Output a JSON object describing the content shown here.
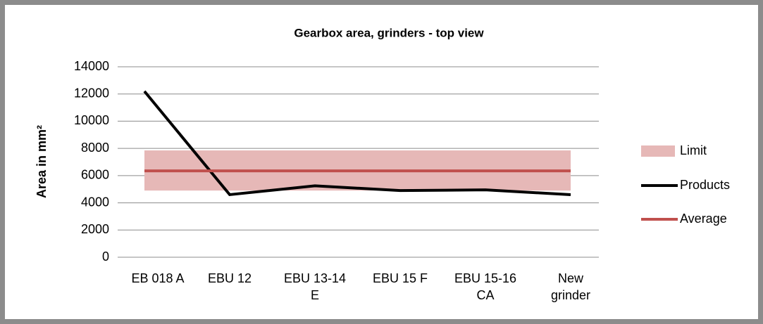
{
  "chart_data": {
    "type": "line",
    "title": "Gearbox area, grinders - top view",
    "y_label": "Area in mm²",
    "categories": [
      "EB 018 A",
      "EBU 12",
      "EBU 13-14 E",
      "EBU 15 F",
      "EBU 15-16 CA",
      "New grinder"
    ],
    "series": [
      {
        "name": "Limit",
        "type": "band",
        "color": "#e6b8b7",
        "low": [
          4900,
          4900,
          4900,
          4900,
          4900,
          4900
        ],
        "high": [
          7850,
          7850,
          7850,
          7850,
          7850,
          7850
        ]
      },
      {
        "name": "Products",
        "type": "line",
        "color": "#000000",
        "values": [
          12200,
          4600,
          5250,
          4900,
          4950,
          4600
        ]
      },
      {
        "name": "Average",
        "type": "line",
        "color": "#c0504d",
        "values": [
          6350,
          6350,
          6350,
          6350,
          6350,
          6350
        ]
      }
    ],
    "ylim": [
      0,
      14000
    ],
    "yticks": [
      0,
      2000,
      4000,
      6000,
      8000,
      10000,
      12000,
      14000
    ],
    "grid": true,
    "legend": "right"
  }
}
